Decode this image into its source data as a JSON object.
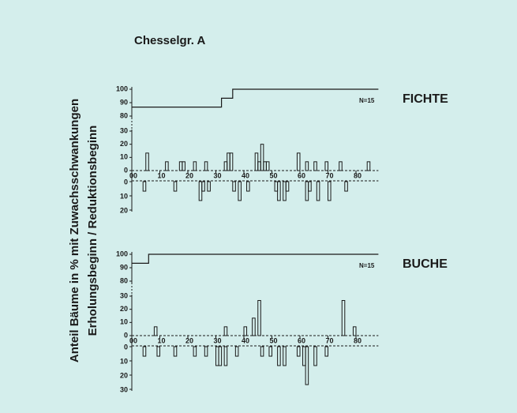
{
  "title": "Chesselgr. A",
  "ylabel_lines": [
    "Anteil Bäume in % mit Zuwachsschwankungen",
    "Erholungsbeginn / Reduktionsbeginn"
  ],
  "chart_data": [
    {
      "type": "bar",
      "title": "FICHTE",
      "annotation": "N=15",
      "xlim": [
        0,
        88
      ],
      "xticks": [
        {
          "value": 0,
          "label": "00"
        },
        10,
        20,
        30,
        40,
        50,
        60,
        70,
        80
      ],
      "ylim": [
        0,
        100
      ],
      "ybreak": [
        30,
        80
      ],
      "yticks": [
        0,
        10,
        20,
        30,
        80,
        90,
        100
      ],
      "y2lim": [
        0,
        20
      ],
      "y2ticks": [
        0,
        10,
        20
      ],
      "line": {
        "x": [
          0,
          32,
          36,
          88
        ],
        "values": [
          86.7,
          93.3,
          100,
          100
        ]
      },
      "up": {
        "x": [
          5,
          12,
          17,
          18,
          22,
          26,
          33,
          34,
          35,
          44,
          45,
          46,
          47,
          48,
          59,
          62,
          65,
          69,
          74,
          84
        ],
        "values": [
          13.3,
          6.7,
          6.7,
          6.7,
          6.7,
          6.7,
          6.7,
          13.3,
          13.3,
          13.3,
          6.7,
          20,
          6.7,
          6.7,
          13.3,
          6.7,
          6.7,
          6.7,
          6.7,
          6.7
        ]
      },
      "down": {
        "axis": "y2",
        "x": [
          4,
          15,
          24,
          25,
          27,
          36,
          38,
          41,
          51,
          52,
          54,
          55,
          62,
          63,
          66,
          70,
          76
        ],
        "values": [
          6.7,
          6.7,
          13.3,
          6.7,
          6.7,
          6.7,
          13.3,
          6.7,
          6.7,
          13.3,
          13.3,
          6.7,
          13.3,
          6.7,
          13.3,
          13.3,
          6.7
        ]
      }
    },
    {
      "type": "bar",
      "title": "BUCHE",
      "annotation": "N=15",
      "xlim": [
        0,
        88
      ],
      "xticks": [
        {
          "value": 0,
          "label": "00"
        },
        10,
        20,
        30,
        40,
        50,
        60,
        70,
        80
      ],
      "ylim": [
        0,
        100
      ],
      "ybreak": [
        30,
        80
      ],
      "yticks": [
        0,
        10,
        20,
        30,
        80,
        90,
        100
      ],
      "y2lim": [
        0,
        30
      ],
      "y2ticks": [
        0,
        10,
        20,
        30
      ],
      "line": {
        "x": [
          0,
          6,
          88
        ],
        "values": [
          93.3,
          100,
          100
        ]
      },
      "up": {
        "x": [
          8,
          33,
          40,
          43,
          45,
          75,
          79
        ],
        "values": [
          6.7,
          6.7,
          6.7,
          13.3,
          26.7,
          26.7,
          6.7
        ]
      },
      "down": {
        "axis": "y2",
        "x": [
          4,
          9,
          15,
          22,
          26,
          30,
          31,
          33,
          37,
          46,
          49,
          52,
          54,
          59,
          61,
          62,
          65,
          69
        ],
        "values": [
          6.7,
          6.7,
          6.7,
          6.7,
          6.7,
          13.3,
          13.3,
          13.3,
          6.7,
          6.7,
          6.7,
          13.3,
          13.3,
          6.7,
          13.3,
          26.7,
          13.3,
          6.7
        ]
      }
    }
  ]
}
